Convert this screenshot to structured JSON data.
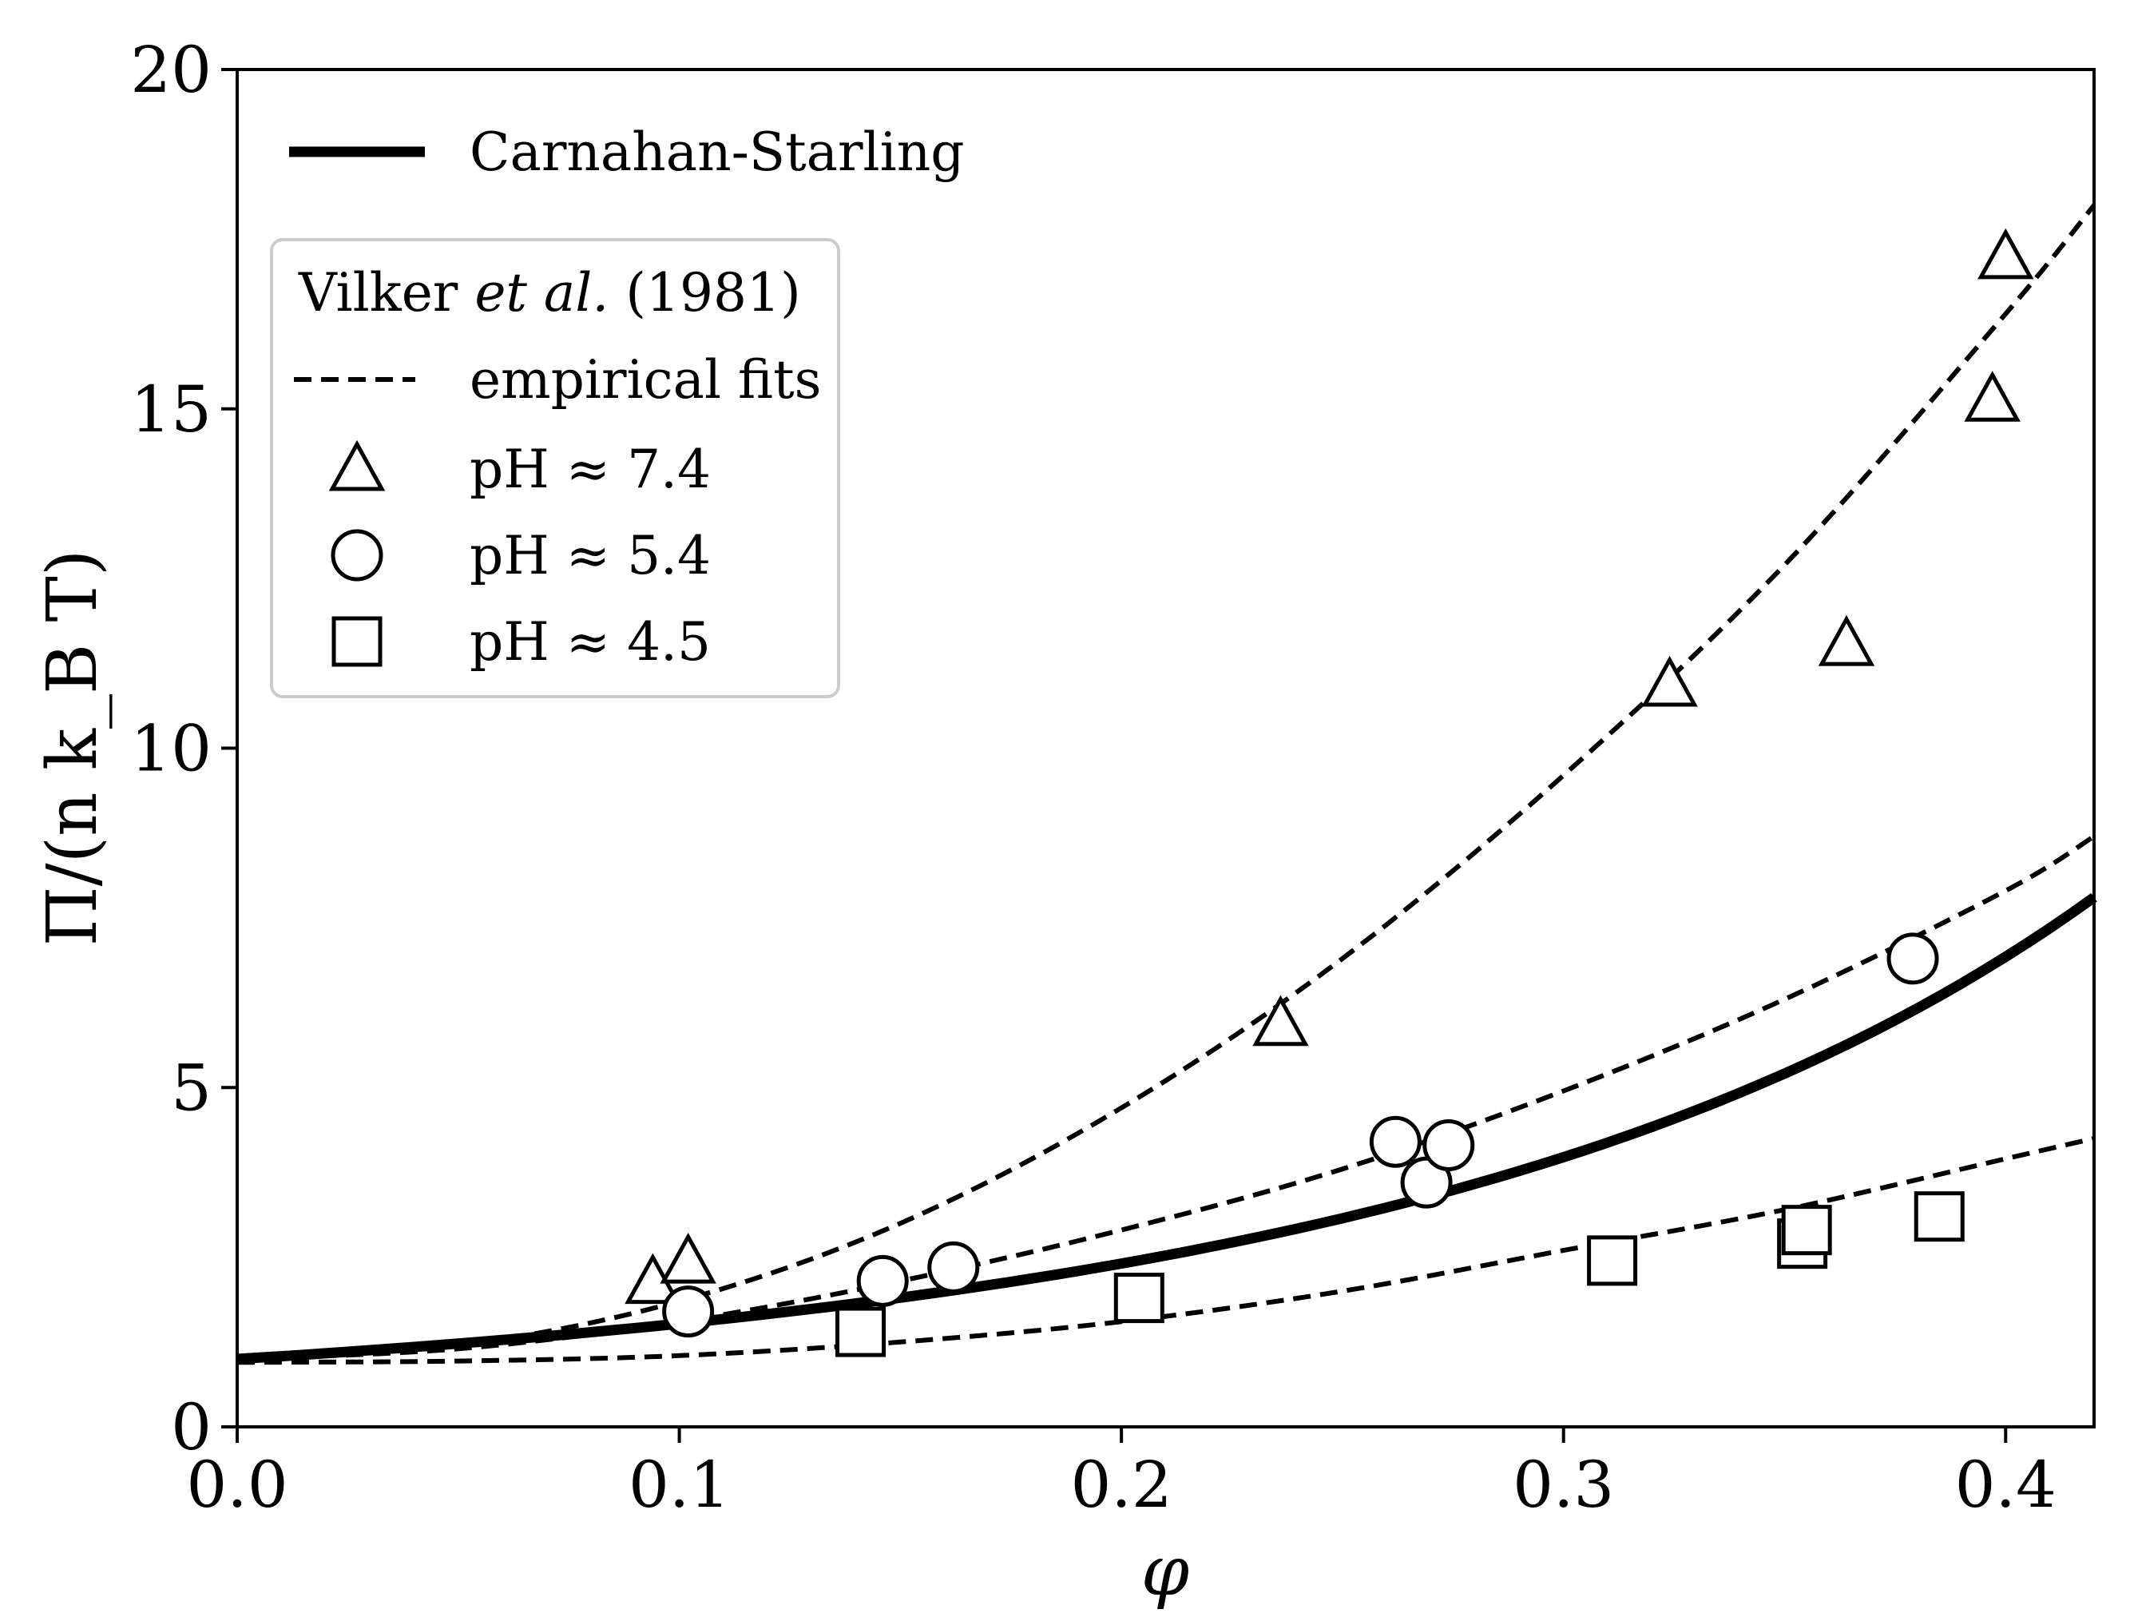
{
  "chart_data": {
    "type": "line",
    "xlabel": "φ",
    "ylabel": "Π/(n k_B T)",
    "xlim": [
      0.0,
      0.42
    ],
    "ylim": [
      0,
      20
    ],
    "xticks": [
      "0.0",
      "0.1",
      "0.2",
      "0.3",
      "0.4"
    ],
    "xtick_values": [
      0.0,
      0.1,
      0.2,
      0.3,
      0.4
    ],
    "yticks": [
      "0",
      "5",
      "10",
      "15",
      "20"
    ],
    "ytick_values": [
      0,
      5,
      10,
      15,
      20
    ],
    "grid": false,
    "legend": {
      "position": "top-left",
      "carnahan_starling": "Carnahan-Starling",
      "box_title_prefix": "Vilker ",
      "box_title_italic": "et al.",
      "box_title_suffix": " (1981)",
      "empirical_fits": "empirical fits",
      "ph74": "pH ≈ 7.4",
      "ph54": "pH ≈ 5.4",
      "ph45": "pH ≈ 4.5"
    },
    "carnahan_starling": {
      "name": "Carnahan-Starling",
      "formula": "(1+x+x^2-x^3)/(1-x)^3",
      "style": "solid-thick"
    },
    "empirical_fits": [
      {
        "name": "fit pH ≈ 7.4",
        "phi": [
          0.0,
          0.05,
          0.1,
          0.15,
          0.2,
          0.25,
          0.3,
          0.35,
          0.4,
          0.42
        ],
        "values": [
          1.0,
          1.2,
          1.85,
          3.0,
          4.7,
          6.9,
          9.6,
          12.7,
          16.4,
          18.0
        ]
      },
      {
        "name": "fit pH ≈ 5.4",
        "phi": [
          0.0,
          0.05,
          0.1,
          0.15,
          0.2,
          0.25,
          0.3,
          0.35,
          0.4,
          0.42
        ],
        "values": [
          1.0,
          1.15,
          1.55,
          2.15,
          2.9,
          3.8,
          4.95,
          6.3,
          7.9,
          8.7
        ]
      },
      {
        "name": "fit pH ≈ 4.5",
        "phi": [
          0.0,
          0.05,
          0.1,
          0.15,
          0.2,
          0.25,
          0.3,
          0.35,
          0.4,
          0.42
        ],
        "values": [
          0.95,
          0.97,
          1.05,
          1.25,
          1.55,
          2.0,
          2.6,
          3.2,
          3.95,
          4.25
        ]
      }
    ],
    "series": [
      {
        "name": "pH ≈ 7.4",
        "marker": "triangle",
        "x": [
          0.094,
          0.102,
          0.236,
          0.324,
          0.364,
          0.397,
          0.4
        ],
        "y": [
          2.1,
          2.4,
          5.9,
          10.9,
          11.5,
          15.1,
          17.2
        ]
      },
      {
        "name": "pH ≈ 5.4",
        "marker": "circle",
        "x": [
          0.102,
          0.146,
          0.162,
          0.262,
          0.269,
          0.274,
          0.379
        ],
        "y": [
          1.7,
          2.15,
          2.35,
          4.2,
          3.6,
          4.15,
          6.9
        ]
      },
      {
        "name": "pH ≈ 4.5",
        "marker": "square",
        "x": [
          0.141,
          0.204,
          0.311,
          0.354,
          0.355,
          0.385
        ],
        "y": [
          1.4,
          1.9,
          2.45,
          2.7,
          2.9,
          3.1
        ]
      }
    ]
  }
}
